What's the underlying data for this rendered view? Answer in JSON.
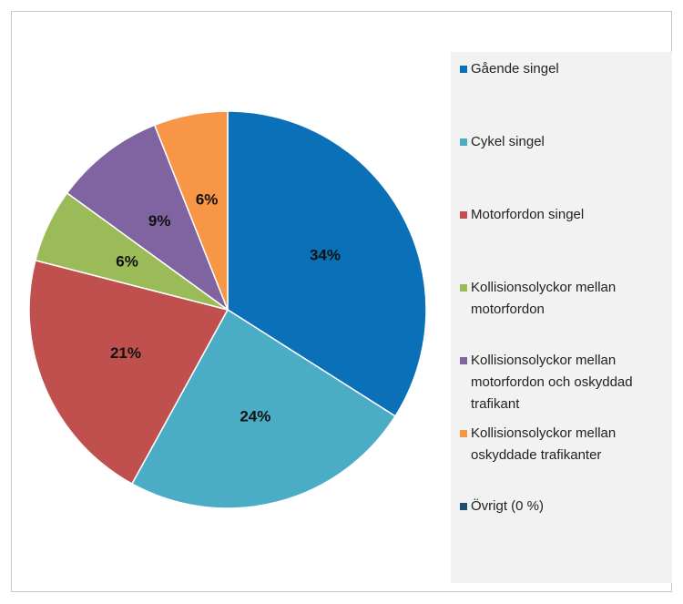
{
  "chart_data": {
    "type": "pie",
    "categories": [
      "Gående singel",
      "Cykel singel",
      "Motorfordon singel",
      "Kollisionsolyckor mellan motorfordon",
      "Kollisionsolyckor mellan motorfordon och oskyddad trafikant",
      "Kollisionsolyckor mellan oskyddade trafikanter",
      "Övrigt (0 %)"
    ],
    "values": [
      34,
      24,
      21,
      6,
      9,
      6,
      0
    ],
    "value_labels": [
      "34%",
      "24%",
      "21%",
      "6%",
      "9%",
      "6%",
      null
    ],
    "colors": [
      "#0a70b8",
      "#4bacc6",
      "#c0504d",
      "#9bbb59",
      "#8064a2",
      "#f79646",
      "#1b4f72"
    ],
    "legend": "right"
  }
}
